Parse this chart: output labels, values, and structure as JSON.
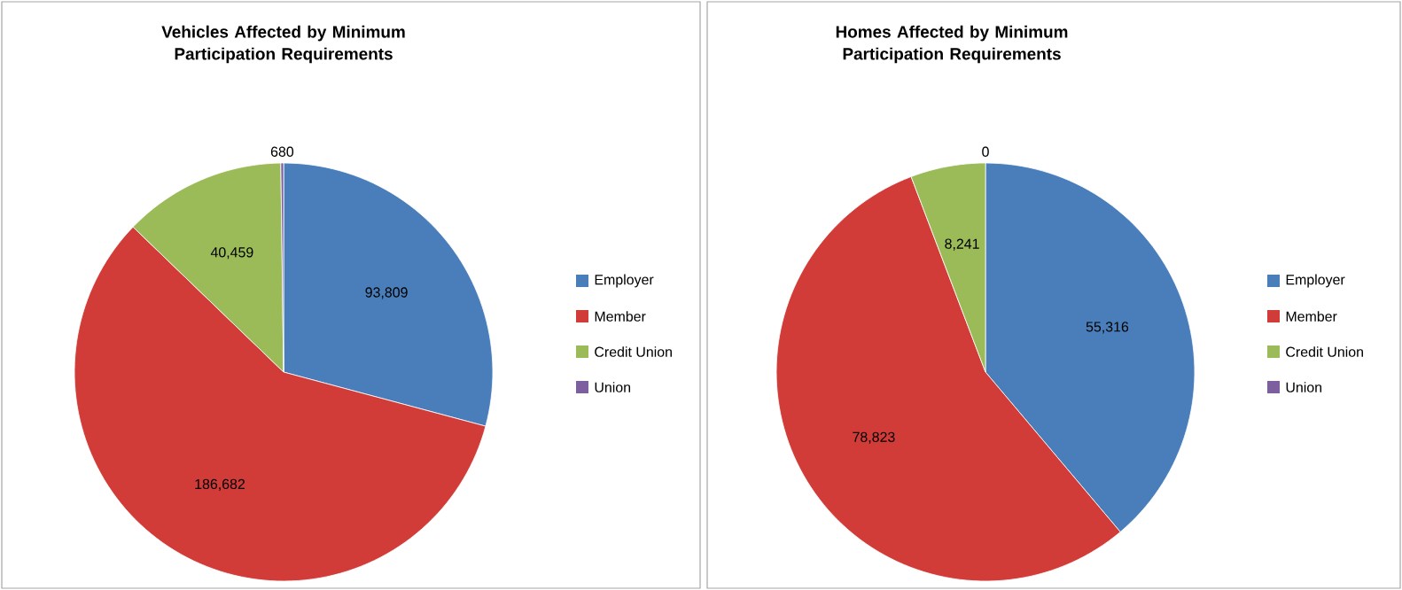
{
  "chart_data": [
    {
      "type": "pie",
      "title": "Vehicles Affected by Minimum Participation Requirements",
      "categories": [
        "Employer",
        "Member",
        "Credit Union",
        "Union"
      ],
      "values": [
        93809,
        186682,
        40459,
        680
      ],
      "value_labels": [
        "93,809",
        "186,682",
        "40,459",
        "680"
      ],
      "colors": [
        "#4a7ebb",
        "#d13b38",
        "#9bbb59",
        "#7d5fa0"
      ],
      "legend": "right"
    },
    {
      "type": "pie",
      "title": "Homes Affected by Minimum Participation Requirements",
      "categories": [
        "Employer",
        "Member",
        "Credit Union",
        "Union"
      ],
      "values": [
        55316,
        78823,
        8241,
        0
      ],
      "value_labels": [
        "55,316",
        "78,823",
        "8,241",
        "0"
      ],
      "colors": [
        "#4a7ebb",
        "#d13b38",
        "#9bbb59",
        "#7d5fa0"
      ],
      "legend": "right"
    }
  ]
}
